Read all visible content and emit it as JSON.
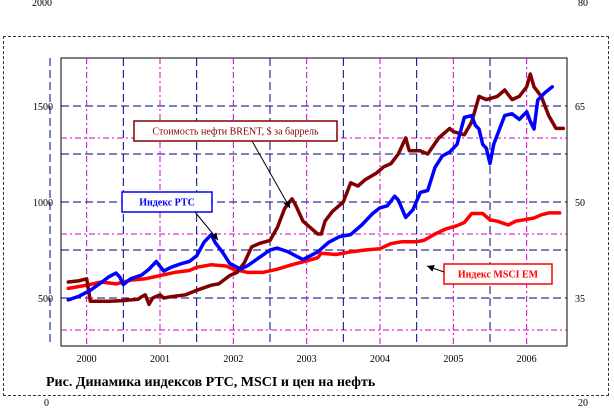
{
  "outer_corner_labels": {
    "top_left": "2000",
    "top_right": "80",
    "bottom_left": "0",
    "bottom_right": "20"
  },
  "caption": "Рис. Динамика индексов РТС, MSCI и цен на нефть",
  "chart_data": {
    "type": "line",
    "title": "",
    "x_tick_labels": [
      "2000",
      "2001",
      "2002",
      "2003",
      "2004",
      "2005",
      "2006"
    ],
    "xlim": [
      1999.65,
      2006.55
    ],
    "y_left": {
      "ticks": [
        500,
        1000,
        1500
      ],
      "ylim": [
        250,
        1750
      ]
    },
    "y_right": {
      "ticks": [
        35,
        50,
        65
      ],
      "ylim": [
        27.5,
        72.5
      ]
    },
    "grid": true,
    "annotations": [
      {
        "text": "Стоимость нефти BRENT, $ за баррель",
        "series": "BRENT"
      },
      {
        "text": "Индекс РТС",
        "series": "RTS"
      },
      {
        "text": "Индекс MSCI EM",
        "series": "MSCI"
      }
    ],
    "series": [
      {
        "name": "Индекс РТС",
        "axis": "left",
        "color": "#0000ff",
        "points": [
          [
            1999.75,
            490
          ],
          [
            1999.9,
            510
          ],
          [
            2000.05,
            540
          ],
          [
            2000.2,
            580
          ],
          [
            2000.3,
            610
          ],
          [
            2000.4,
            630
          ],
          [
            2000.45,
            610
          ],
          [
            2000.5,
            570
          ],
          [
            2000.6,
            600
          ],
          [
            2000.75,
            620
          ],
          [
            2000.85,
            650
          ],
          [
            2000.95,
            690
          ],
          [
            2001.05,
            640
          ],
          [
            2001.15,
            660
          ],
          [
            2001.3,
            680
          ],
          [
            2001.4,
            690
          ],
          [
            2001.5,
            720
          ],
          [
            2001.6,
            790
          ],
          [
            2001.7,
            830
          ],
          [
            2001.75,
            790
          ],
          [
            2001.85,
            740
          ],
          [
            2001.95,
            680
          ],
          [
            2002.1,
            650
          ],
          [
            2002.2,
            670
          ],
          [
            2002.35,
            710
          ],
          [
            2002.5,
            750
          ],
          [
            2002.6,
            760
          ],
          [
            2002.75,
            740
          ],
          [
            2002.85,
            720
          ],
          [
            2002.95,
            700
          ],
          [
            2003.05,
            720
          ],
          [
            2003.15,
            740
          ],
          [
            2003.3,
            790
          ],
          [
            2003.45,
            820
          ],
          [
            2003.6,
            830
          ],
          [
            2003.75,
            880
          ],
          [
            2003.9,
            940
          ],
          [
            2004.0,
            970
          ],
          [
            2004.1,
            980
          ],
          [
            2004.2,
            1030
          ],
          [
            2004.25,
            1010
          ],
          [
            2004.35,
            920
          ],
          [
            2004.45,
            960
          ],
          [
            2004.55,
            1050
          ],
          [
            2004.65,
            1060
          ],
          [
            2004.75,
            1180
          ],
          [
            2004.85,
            1240
          ],
          [
            2004.95,
            1260
          ],
          [
            2005.05,
            1300
          ],
          [
            2005.15,
            1440
          ],
          [
            2005.25,
            1450
          ],
          [
            2005.3,
            1400
          ],
          [
            2005.35,
            1380
          ],
          [
            2005.4,
            1300
          ],
          [
            2005.45,
            1280
          ],
          [
            2005.5,
            1200
          ],
          [
            2005.55,
            1300
          ],
          [
            2005.65,
            1400
          ],
          [
            2005.7,
            1450
          ],
          [
            2005.8,
            1460
          ],
          [
            2005.9,
            1430
          ],
          [
            2006.0,
            1470
          ],
          [
            2006.05,
            1420
          ],
          [
            2006.1,
            1380
          ],
          [
            2006.15,
            1530
          ],
          [
            2006.25,
            1570
          ],
          [
            2006.35,
            1600
          ]
        ]
      },
      {
        "name": "MSCI EM",
        "axis": "right",
        "color": "#ff0000",
        "points": [
          [
            1999.75,
            36.5
          ],
          [
            2000.0,
            37.0
          ],
          [
            2000.2,
            37.5
          ],
          [
            2000.4,
            37.2
          ],
          [
            2000.6,
            37.8
          ],
          [
            2000.8,
            38.0
          ],
          [
            2001.0,
            38.5
          ],
          [
            2001.2,
            39.0
          ],
          [
            2001.4,
            39.3
          ],
          [
            2001.5,
            39.8
          ],
          [
            2001.7,
            40.2
          ],
          [
            2001.9,
            40.0
          ],
          [
            2002.0,
            39.5
          ],
          [
            2002.2,
            39.0
          ],
          [
            2002.4,
            39.0
          ],
          [
            2002.6,
            39.5
          ],
          [
            2002.8,
            40.2
          ],
          [
            2003.0,
            40.8
          ],
          [
            2003.15,
            41.3
          ],
          [
            2003.2,
            42.0
          ],
          [
            2003.4,
            41.8
          ],
          [
            2003.6,
            42.2
          ],
          [
            2003.8,
            42.5
          ],
          [
            2004.0,
            42.7
          ],
          [
            2004.15,
            43.5
          ],
          [
            2004.3,
            43.8
          ],
          [
            2004.5,
            43.8
          ],
          [
            2004.6,
            44.0
          ],
          [
            2004.75,
            45.0
          ],
          [
            2004.9,
            45.8
          ],
          [
            2005.05,
            46.3
          ],
          [
            2005.15,
            46.8
          ],
          [
            2005.25,
            48.2
          ],
          [
            2005.4,
            48.2
          ],
          [
            2005.5,
            47.2
          ],
          [
            2005.6,
            47.0
          ],
          [
            2005.75,
            46.4
          ],
          [
            2005.85,
            47.0
          ],
          [
            2006.0,
            47.3
          ],
          [
            2006.1,
            47.5
          ],
          [
            2006.2,
            48.0
          ],
          [
            2006.3,
            48.3
          ],
          [
            2006.45,
            48.3
          ]
        ]
      },
      {
        "name": "Стоимость нефти BRENT, $ за баррель",
        "axis": "right",
        "color": "#800000",
        "points": [
          [
            1999.75,
            37.5
          ],
          [
            1999.9,
            37.7
          ],
          [
            2000.0,
            38.0
          ],
          [
            2000.05,
            34.5
          ],
          [
            2000.3,
            34.5
          ],
          [
            2000.5,
            34.6
          ],
          [
            2000.7,
            34.8
          ],
          [
            2000.75,
            35.2
          ],
          [
            2000.8,
            35.5
          ],
          [
            2000.85,
            34.0
          ],
          [
            2000.9,
            35.0
          ],
          [
            2001.0,
            35.5
          ],
          [
            2001.05,
            35.0
          ],
          [
            2001.15,
            35.2
          ],
          [
            2001.35,
            35.5
          ],
          [
            2001.5,
            36.2
          ],
          [
            2001.7,
            37.0
          ],
          [
            2001.8,
            37.2
          ],
          [
            2001.95,
            38.5
          ],
          [
            2002.05,
            39.0
          ],
          [
            2002.15,
            40.5
          ],
          [
            2002.25,
            43.0
          ],
          [
            2002.35,
            43.5
          ],
          [
            2002.5,
            44.0
          ],
          [
            2002.6,
            46.0
          ],
          [
            2002.7,
            49.0
          ],
          [
            2002.8,
            50.5
          ],
          [
            2002.85,
            49.5
          ],
          [
            2002.95,
            47.0
          ],
          [
            2003.05,
            46.0
          ],
          [
            2003.15,
            45.0
          ],
          [
            2003.2,
            45.0
          ],
          [
            2003.25,
            47.0
          ],
          [
            2003.35,
            48.5
          ],
          [
            2003.5,
            50.0
          ],
          [
            2003.6,
            53.0
          ],
          [
            2003.7,
            52.5
          ],
          [
            2003.8,
            53.5
          ],
          [
            2003.95,
            54.5
          ],
          [
            2004.05,
            55.5
          ],
          [
            2004.15,
            56.0
          ],
          [
            2004.25,
            57.5
          ],
          [
            2004.35,
            60.0
          ],
          [
            2004.4,
            58.0
          ],
          [
            2004.55,
            58.0
          ],
          [
            2004.65,
            57.5
          ],
          [
            2004.8,
            60.0
          ],
          [
            2004.95,
            61.5
          ],
          [
            2005.0,
            61.0
          ],
          [
            2005.15,
            60.5
          ],
          [
            2005.25,
            62.5
          ],
          [
            2005.35,
            66.5
          ],
          [
            2005.45,
            66.0
          ],
          [
            2005.6,
            66.5
          ],
          [
            2005.7,
            67.5
          ],
          [
            2005.8,
            66.0
          ],
          [
            2005.9,
            66.5
          ],
          [
            2006.0,
            68.0
          ],
          [
            2006.05,
            70.0
          ],
          [
            2006.1,
            68.0
          ],
          [
            2006.2,
            66.5
          ],
          [
            2006.3,
            63.5
          ],
          [
            2006.4,
            61.5
          ],
          [
            2006.5,
            61.5
          ]
        ]
      }
    ]
  }
}
